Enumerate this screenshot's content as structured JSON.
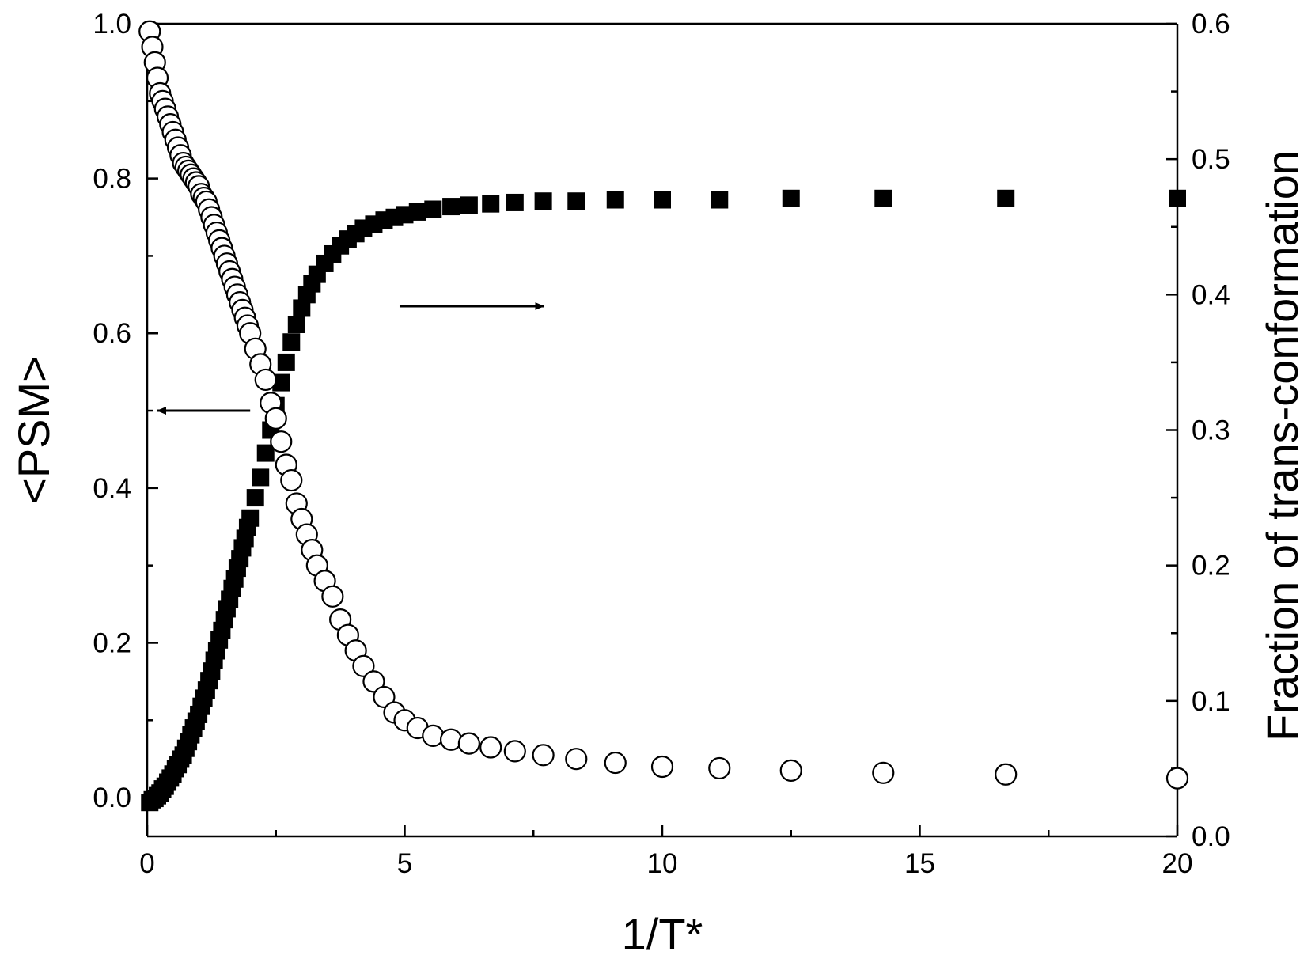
{
  "chart_data": {
    "type": "scatter",
    "xlabel": "1/T*",
    "ylabel_left": "<PSM>",
    "ylabel_right": "Fraction of trans-conformation",
    "xlim": [
      0,
      20
    ],
    "ylim_left": [
      -0.05,
      1.0
    ],
    "ylim_right": [
      0.0,
      0.6
    ],
    "x_ticks": [
      "0",
      "5",
      "10",
      "15",
      "20"
    ],
    "y_left_ticks": [
      "0.0",
      "0.2",
      "0.4",
      "0.6",
      "0.8",
      "1.0"
    ],
    "y_right_ticks": [
      "0.0",
      "0.1",
      "0.2",
      "0.3",
      "0.4",
      "0.5",
      "0.6"
    ],
    "grid": false,
    "series": [
      {
        "axis": "left",
        "marker": "open-circle",
        "x": [
          0.05,
          0.1,
          0.15,
          0.2,
          0.25,
          0.3,
          0.35,
          0.4,
          0.45,
          0.5,
          0.55,
          0.6,
          0.65,
          0.7,
          0.75,
          0.8,
          0.85,
          0.9,
          0.95,
          1.0,
          1.05,
          1.1,
          1.15,
          1.2,
          1.25,
          1.3,
          1.35,
          1.4,
          1.45,
          1.5,
          1.55,
          1.6,
          1.65,
          1.7,
          1.75,
          1.8,
          1.85,
          1.9,
          1.95,
          2.0,
          2.1,
          2.2,
          2.3,
          2.4,
          2.5,
          2.6,
          2.7,
          2.8,
          2.9,
          3.0,
          3.1,
          3.2,
          3.3,
          3.45,
          3.6,
          3.75,
          3.9,
          4.05,
          4.2,
          4.4,
          4.6,
          4.8,
          5.0,
          5.25,
          5.55,
          5.9,
          6.25,
          6.67,
          7.14,
          7.69,
          8.33,
          9.09,
          10.0,
          11.11,
          12.5,
          14.29,
          16.67,
          20.0
        ],
        "y": [
          0.99,
          0.97,
          0.95,
          0.93,
          0.91,
          0.9,
          0.89,
          0.88,
          0.87,
          0.86,
          0.85,
          0.84,
          0.83,
          0.82,
          0.815,
          0.81,
          0.805,
          0.8,
          0.795,
          0.79,
          0.78,
          0.775,
          0.77,
          0.76,
          0.75,
          0.74,
          0.73,
          0.72,
          0.71,
          0.7,
          0.69,
          0.68,
          0.67,
          0.66,
          0.65,
          0.64,
          0.63,
          0.62,
          0.61,
          0.6,
          0.58,
          0.56,
          0.54,
          0.51,
          0.49,
          0.46,
          0.43,
          0.41,
          0.38,
          0.36,
          0.34,
          0.32,
          0.3,
          0.28,
          0.26,
          0.23,
          0.21,
          0.19,
          0.17,
          0.15,
          0.13,
          0.11,
          0.1,
          0.09,
          0.08,
          0.075,
          0.07,
          0.065,
          0.06,
          0.055,
          0.05,
          0.045,
          0.04,
          0.038,
          0.035,
          0.032,
          0.03,
          0.025
        ]
      },
      {
        "axis": "right",
        "marker": "filled-square",
        "x": [
          0.05,
          0.1,
          0.15,
          0.2,
          0.25,
          0.3,
          0.35,
          0.4,
          0.45,
          0.5,
          0.55,
          0.6,
          0.65,
          0.7,
          0.75,
          0.8,
          0.85,
          0.9,
          0.95,
          1.0,
          1.05,
          1.1,
          1.15,
          1.2,
          1.25,
          1.3,
          1.35,
          1.4,
          1.45,
          1.5,
          1.55,
          1.6,
          1.65,
          1.7,
          1.75,
          1.8,
          1.85,
          1.9,
          1.95,
          2.0,
          2.1,
          2.2,
          2.3,
          2.4,
          2.5,
          2.6,
          2.7,
          2.8,
          2.9,
          3.0,
          3.1,
          3.2,
          3.3,
          3.45,
          3.6,
          3.75,
          3.9,
          4.05,
          4.2,
          4.4,
          4.6,
          4.8,
          5.0,
          5.25,
          5.55,
          5.9,
          6.25,
          6.67,
          7.14,
          7.69,
          8.33,
          9.09,
          10.0,
          11.11,
          12.5,
          14.29,
          16.67,
          20.0
        ],
        "y": [
          0.025,
          0.027,
          0.028,
          0.03,
          0.032,
          0.035,
          0.037,
          0.04,
          0.043,
          0.046,
          0.05,
          0.053,
          0.057,
          0.06,
          0.065,
          0.07,
          0.075,
          0.08,
          0.085,
          0.09,
          0.096,
          0.102,
          0.108,
          0.115,
          0.122,
          0.13,
          0.137,
          0.145,
          0.152,
          0.16,
          0.168,
          0.175,
          0.183,
          0.19,
          0.198,
          0.205,
          0.213,
          0.22,
          0.228,
          0.235,
          0.25,
          0.265,
          0.283,
          0.3,
          0.318,
          0.335,
          0.35,
          0.365,
          0.378,
          0.39,
          0.4,
          0.408,
          0.415,
          0.423,
          0.43,
          0.436,
          0.441,
          0.445,
          0.449,
          0.452,
          0.455,
          0.457,
          0.459,
          0.461,
          0.463,
          0.465,
          0.466,
          0.467,
          0.468,
          0.469,
          0.469,
          0.47,
          0.47,
          0.47,
          0.471,
          0.471,
          0.471,
          0.471
        ]
      }
    ],
    "annotations": [
      {
        "type": "arrow",
        "direction": "left",
        "axis": "left",
        "x_from": 2.0,
        "x_to": 0.2,
        "y": 0.5
      },
      {
        "type": "arrow",
        "direction": "right",
        "axis": "left",
        "x_from": 4.9,
        "x_to": 7.7,
        "y": 0.635
      }
    ]
  }
}
